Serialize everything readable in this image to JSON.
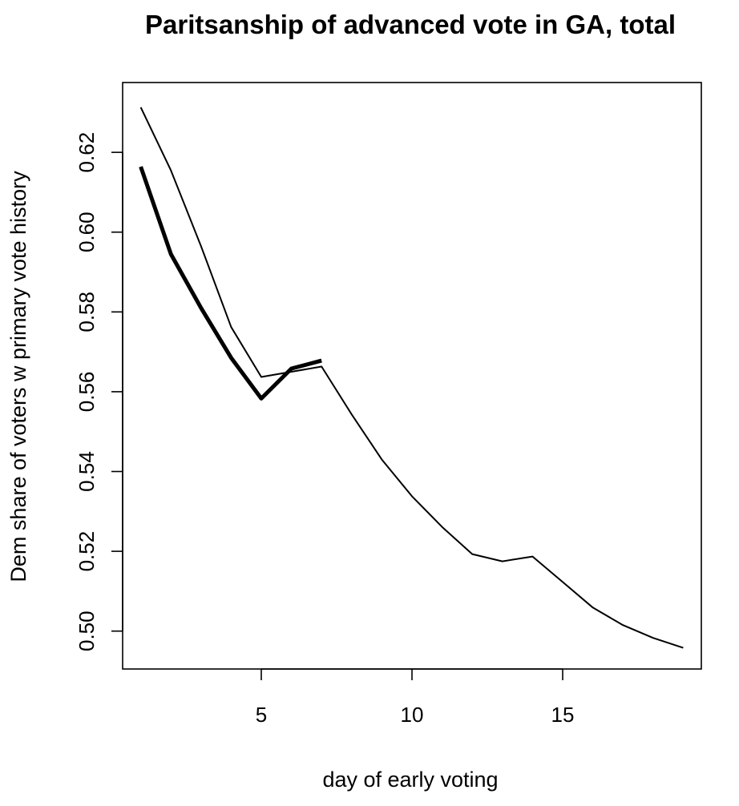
{
  "chart_data": {
    "type": "line",
    "title": "Paritsanship of advanced vote in GA, total",
    "xlabel": "day of early voting",
    "ylabel": "Dem share of voters w primary vote history",
    "xlim": [
      0.4,
      19.6
    ],
    "ylim": [
      0.4905,
      0.6375
    ],
    "x_ticks": [
      5,
      10,
      15
    ],
    "y_ticks": [
      0.5,
      0.52,
      0.54,
      0.56,
      0.58,
      0.6,
      0.62
    ],
    "y_tick_labels": [
      "0.50",
      "0.52",
      "0.54",
      "0.56",
      "0.58",
      "0.60",
      "0.62"
    ],
    "grid": false,
    "legend": "none",
    "series": [
      {
        "style": "thin",
        "color": "#000000",
        "x": [
          1,
          2,
          3,
          4,
          5,
          6,
          7,
          8,
          9,
          10,
          11,
          12,
          13,
          14,
          15,
          16,
          17,
          18,
          19
        ],
        "values": [
          0.6313,
          0.6155,
          0.5965,
          0.5762,
          0.5637,
          0.565,
          0.5663,
          0.5543,
          0.543,
          0.5338,
          0.5261,
          0.5193,
          0.5175,
          0.5187,
          0.5123,
          0.5059,
          0.5015,
          0.4983,
          0.4958
        ]
      },
      {
        "style": "thick",
        "color": "#000000",
        "x": [
          1,
          2,
          3,
          4,
          5,
          6,
          7
        ],
        "values": [
          0.6164,
          0.5945,
          0.581,
          0.5685,
          0.5583,
          0.5658,
          0.5678
        ]
      }
    ]
  }
}
